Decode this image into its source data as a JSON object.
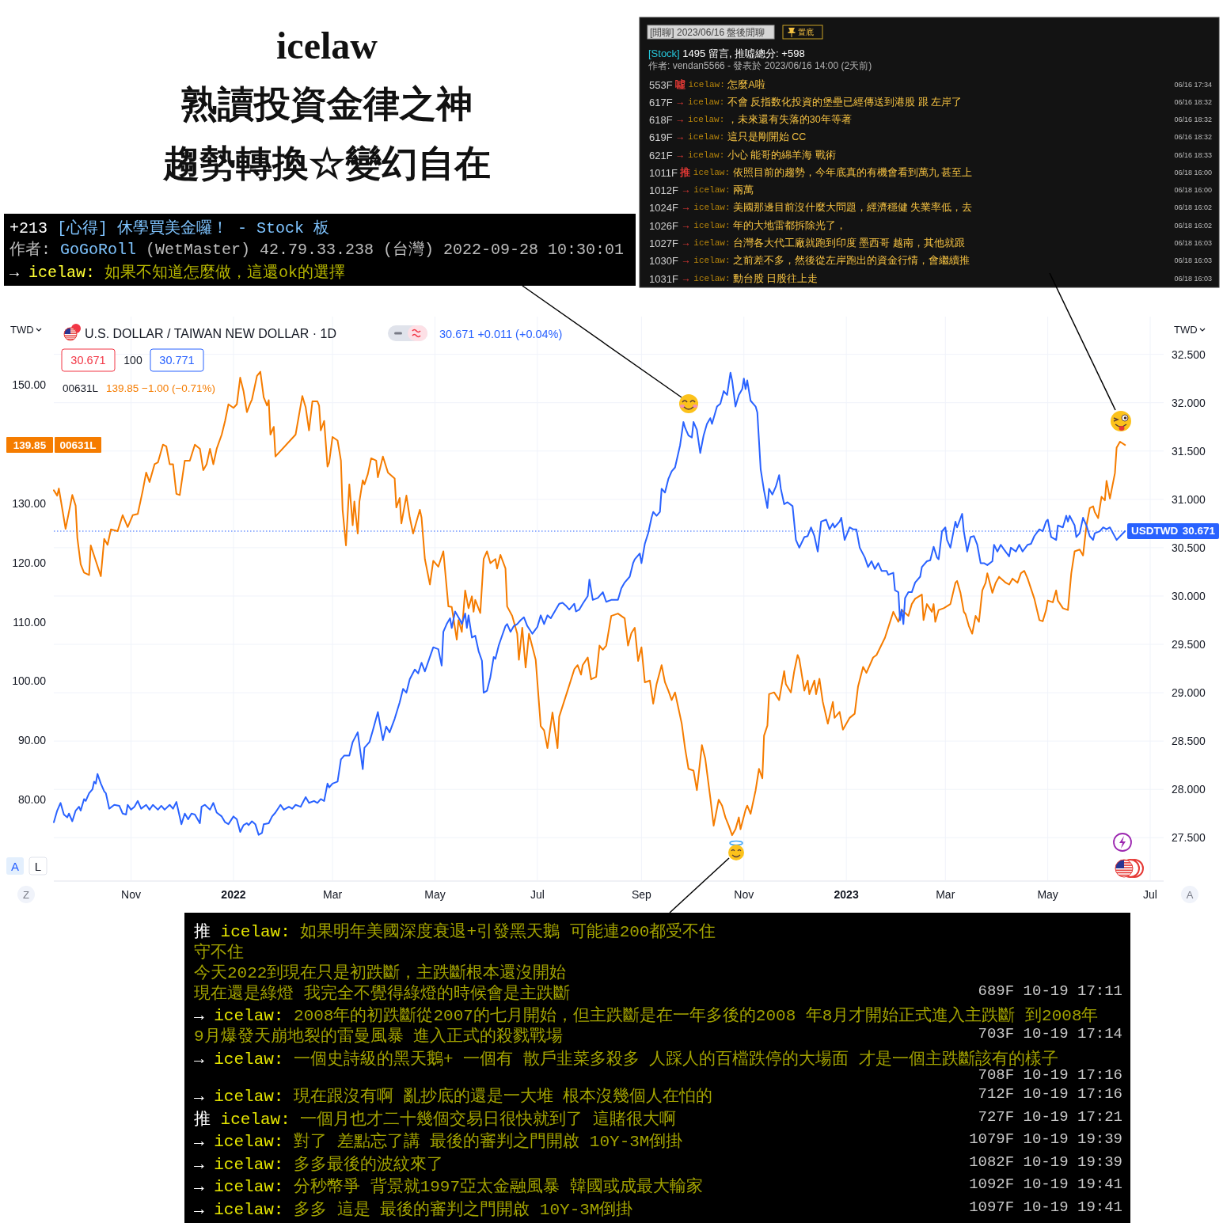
{
  "chart_data": {
    "type": "line",
    "title": "icelaw",
    "subtitle": "熟讀投資金律之神",
    "ylabel": "TWD",
    "y2label": "TWD",
    "annotations": [
      "+213 [心得] 休學買美金囉！ - Stock 板",
      "作者: GoGoRoll (WetMaster) 42.79.33.238 (台灣) 2022-09-28 10:30:01",
      "→ icelaw: 如果不知道怎麼做，這還ok的選擇",
      "[閒聊] 2023/06/16 盤後閒聊",
      "置底",
      "[Stock] 1495 留言, 推噓總分: +598",
      "作者: vendan5566 - 發表於 2023/06/16 14:00 (2天前)",
      "553F 噓 icelaw: 怎麼A啦",
      "06/16 17:34",
      "617F → icelaw: 不會 反指数化投資的堡壘已經傳送到港股 跟 左岸了",
      "06/16 18:32",
      "618F → icelaw: ，未來還有失落的30年等著",
      "06/16 18:32",
      "619F → icelaw: 這只是剛開始 CC",
      "06/16 18:32",
      "621F → icelaw: 小心 能哥的綿羊海 戰術",
      "06/16 18:33",
      "1011F 推 icelaw: 依照目前的趨勢，今年底真的有機會看到萬九 甚至上",
      "06/18 16:00",
      "1012F → icelaw: 兩萬",
      "06/18 16:00",
      "1024F → icelaw: 美國那邊目前沒什麼大問題，經濟穩健 失業率低，去",
      "06/18 16:02",
      "1026F → icelaw: 年的大地雷都拆除光了，",
      "06/18 16:02",
      "1027F → icelaw: 台灣各大代工廠就跑到印度 墨西哥 越南，其他就跟",
      "06/18 16:03",
      "1030F → icelaw: 之前差不多，然後從左岸跑出的資金行情，會繼續推",
      "06/18 16:03",
      "1031F → icelaw: 動台股 日股往上走",
      "06/18 16:03",
      "推 icelaw: 如果明年美國深度衰退+引發黑天鵝 可能連200都受不住",
      "守不住",
      "今天2022到現在只是初跌斷，主跌斷根本還沒開始",
      "現在還是綠燈 我完全不覺得綠燈的時候會是主跌斷",
      "689F 10-19 17:11",
      "→ icelaw: 2008年的初跌斷從2007的七月開始，但主跌斷是在一年多後的2008 年8月才開始正式進入主跌斷 到2008年",
      "9月爆發天崩地裂的雷曼風暴 進入正式的殺戮戰場",
      "703F 10-19 17:14",
      "→ icelaw: 一個史詩級的黑天鵝+ 一個有 散戶韭菜多殺多 人踩人的百檔跌停的大場面 才是一個主跌斷該有的樣子",
      "708F 10-19 17:16",
      "→ icelaw: 現在跟沒有啊 亂抄底的還是一大堆 根本沒幾個人在怕的",
      "712F 10-19 17:16",
      "推 icelaw: 一個月也才二十幾個交易日很快就到了 這賭很大啊",
      "727F 10-19 17:21",
      "→ icelaw: 對了 差點忘了講 最後的審判之門開啟 10Y-3M倒掛",
      "1079F 10-19 19:39",
      "→ icelaw: 多多最後的波紋來了",
      "1082F 10-19 19:39",
      "→ icelaw: 分秒幣爭 背景就1997亞太金融風暴 韓國或成最大輸家",
      "1092F 10-19 19:41",
      "→ icelaw: 多多 這是 最後的審判之門開啟 10Y-3M倒掛",
      "1097F 10-19 19:41",
      "U.S. DOLLAR / TAIWAN NEW DOLLAR · 1D",
      "30.671 +0.011 (+0.04%)",
      "30.671",
      "100",
      "30.771",
      "139.85 −1.00 (−0.71%)",
      "A",
      "L",
      "Z",
      "A",
      "趨勢轉換☆變幻自在",
      "139.85",
      "30.671"
    ],
    "xlim": [
      "2021-09-16",
      "2023-07-09"
    ],
    "xticks": [
      {
        "value": "2021-11-01",
        "label": "Nov"
      },
      {
        "value": "2022-01-01",
        "label": "2022"
      },
      {
        "value": "2022-03-01",
        "label": "Mar"
      },
      {
        "value": "2022-05-01",
        "label": "May"
      },
      {
        "value": "2022-07-01",
        "label": "Jul"
      },
      {
        "value": "2022-09-01",
        "label": "Sep"
      },
      {
        "value": "2022-11-01",
        "label": "Nov"
      },
      {
        "value": "2023-01-01",
        "label": "2023"
      },
      {
        "value": "2023-03-01",
        "label": "Mar"
      },
      {
        "value": "2023-05-01",
        "label": "May"
      },
      {
        "value": "2023-07-01",
        "label": "Jul"
      }
    ],
    "ylim": [
      66.4,
      161.5
    ],
    "yticks": [
      {
        "value": 80,
        "label": "80.00"
      },
      {
        "value": 90,
        "label": "90.00"
      },
      {
        "value": 100,
        "label": "100.00"
      },
      {
        "value": 110,
        "label": "110.00"
      },
      {
        "value": 120,
        "label": "120.00"
      },
      {
        "value": 130,
        "label": "130.00"
      },
      {
        "value": 150,
        "label": "150.00"
      }
    ],
    "y2lim": [
      27.06,
      32.89
    ],
    "y2ticks": [
      {
        "value": 27.5,
        "label": "27.500"
      },
      {
        "value": 28,
        "label": "28.000"
      },
      {
        "value": 28.5,
        "label": "28.500"
      },
      {
        "value": 29,
        "label": "29.000"
      },
      {
        "value": 29.5,
        "label": "29.500"
      },
      {
        "value": 30,
        "label": "30.000"
      },
      {
        "value": 30.5,
        "label": "30.500"
      },
      {
        "value": 31,
        "label": "31.000"
      },
      {
        "value": 31.5,
        "label": "31.500"
      },
      {
        "value": 32,
        "label": "32.000"
      },
      {
        "value": 32.5,
        "label": "32.500"
      }
    ],
    "grid": true,
    "legend": "top left",
    "ref_lines": [
      {
        "axis": "y2",
        "value": 30.671,
        "color": "#2962ff",
        "line_style": "dotted"
      }
    ],
    "series": [
      {
        "name": "00631L",
        "color": "#f57c00",
        "x": [
          "2021-09-16",
          "2021-09-18",
          "2021-09-19",
          "2021-09-23",
          "2021-09-27",
          "2021-09-29",
          "2021-09-30",
          "2021-10-02",
          "2021-10-04",
          "2021-10-07",
          "2021-10-08",
          "2021-10-11",
          "2021-10-14",
          "2021-10-16",
          "2021-10-18",
          "2021-10-20",
          "2021-10-24",
          "2021-10-27",
          "2021-10-30",
          "2021-11-02",
          "2021-11-05",
          "2021-11-08",
          "2021-11-10",
          "2021-11-12",
          "2021-11-15",
          "2021-11-17",
          "2021-11-20",
          "2021-11-22",
          "2021-11-24",
          "2021-11-26",
          "2021-11-28",
          "2021-11-30",
          "2021-12-03",
          "2021-12-06",
          "2021-12-09",
          "2021-12-12",
          "2021-12-14",
          "2021-12-16",
          "2021-12-18",
          "2021-12-20",
          "2021-12-22",
          "2021-12-25",
          "2021-12-27",
          "2021-12-29",
          "2022-01-01",
          "2022-01-03",
          "2022-01-05",
          "2022-01-07",
          "2022-01-09",
          "2022-01-11",
          "2022-01-12",
          "2022-01-15",
          "2022-01-17",
          "2022-01-19",
          "2022-01-21",
          "2022-01-22",
          "2022-01-23",
          "2022-01-25",
          "2022-01-26",
          "2022-02-07",
          "2022-02-11",
          "2022-02-13",
          "2022-02-15",
          "2022-02-17",
          "2022-02-20",
          "2022-02-21",
          "2022-02-22",
          "2022-02-24",
          "2022-02-26",
          "2022-02-27",
          "2022-03-01",
          "2022-03-04",
          "2022-03-06",
          "2022-03-07",
          "2022-03-09",
          "2022-03-11",
          "2022-03-13",
          "2022-03-14",
          "2022-03-16",
          "2022-03-17",
          "2022-03-19",
          "2022-03-20",
          "2022-03-22",
          "2022-03-24",
          "2022-03-27",
          "2022-03-28",
          "2022-03-31",
          "2022-04-03",
          "2022-04-07",
          "2022-04-08",
          "2022-04-10",
          "2022-04-11",
          "2022-04-14",
          "2022-04-16",
          "2022-04-18",
          "2022-04-20",
          "2022-04-22",
          "2022-04-23",
          "2022-04-25",
          "2022-04-28",
          "2022-04-30",
          "2022-05-03",
          "2022-05-06",
          "2022-05-09",
          "2022-05-11",
          "2022-05-14",
          "2022-05-15",
          "2022-05-17",
          "2022-05-19",
          "2022-05-21",
          "2022-05-23",
          "2022-05-24",
          "2022-05-25",
          "2022-05-28",
          "2022-05-30",
          "2022-06-01",
          "2022-06-03",
          "2022-06-06",
          "2022-06-07",
          "2022-06-09",
          "2022-06-12",
          "2022-06-13",
          "2022-06-16",
          "2022-06-19",
          "2022-06-20",
          "2022-06-22",
          "2022-06-24",
          "2022-06-26",
          "2022-06-30",
          "2022-07-03",
          "2022-07-05",
          "2022-07-07",
          "2022-07-10",
          "2022-07-13",
          "2022-07-14",
          "2022-07-19",
          "2022-07-23",
          "2022-07-25",
          "2022-07-27",
          "2022-07-28",
          "2022-07-31",
          "2022-08-02",
          "2022-08-05",
          "2022-08-07",
          "2022-08-09",
          "2022-08-11",
          "2022-08-14",
          "2022-08-18",
          "2022-08-22",
          "2022-08-24",
          "2022-08-26",
          "2022-08-28",
          "2022-08-30",
          "2022-09-01",
          "2022-09-03",
          "2022-09-06",
          "2022-09-08",
          "2022-09-10",
          "2022-09-13",
          "2022-09-15",
          "2022-09-17",
          "2022-09-19",
          "2022-09-21",
          "2022-09-25",
          "2022-09-27",
          "2022-09-29",
          "2022-10-02",
          "2022-10-04",
          "2022-10-07",
          "2022-10-09",
          "2022-10-12",
          "2022-10-14",
          "2022-10-17",
          "2022-10-19",
          "2022-10-21",
          "2022-10-23",
          "2022-10-25",
          "2022-10-27",
          "2022-10-29",
          "2022-10-30",
          "2022-11-02",
          "2022-11-03",
          "2022-11-05",
          "2022-11-08",
          "2022-11-10",
          "2022-11-12",
          "2022-11-13",
          "2022-11-15",
          "2022-11-16",
          "2022-11-19",
          "2022-11-22",
          "2022-11-25",
          "2022-11-26",
          "2022-11-29",
          "2022-12-01",
          "2022-12-03",
          "2022-12-04",
          "2022-12-07",
          "2022-12-09",
          "2022-12-10",
          "2022-12-13",
          "2022-12-14",
          "2022-12-16",
          "2022-12-18",
          "2022-12-21",
          "2022-12-24",
          "2022-12-25",
          "2022-12-28",
          "2022-12-30",
          "2023-01-03",
          "2023-01-06",
          "2023-01-08",
          "2023-01-11",
          "2023-01-13",
          "2023-01-17",
          "2023-01-19",
          "2023-01-24",
          "2023-01-29",
          "2023-02-01",
          "2023-02-03",
          "2023-02-07",
          "2023-02-09",
          "2023-02-11",
          "2023-02-15",
          "2023-02-16",
          "2023-02-18",
          "2023-02-21",
          "2023-02-22",
          "2023-02-23",
          "2023-02-25",
          "2023-02-28",
          "2023-03-04",
          "2023-03-07",
          "2023-03-08",
          "2023-03-10",
          "2023-03-12",
          "2023-03-13",
          "2023-03-15",
          "2023-03-17",
          "2023-03-19",
          "2023-03-21",
          "2023-03-23",
          "2023-03-25",
          "2023-03-26",
          "2023-03-29",
          "2023-03-31",
          "2023-04-02",
          "2023-04-06",
          "2023-04-08",
          "2023-04-10",
          "2023-04-13",
          "2023-04-15",
          "2023-04-17",
          "2023-04-19",
          "2023-04-21",
          "2023-04-23",
          "2023-04-26",
          "2023-04-28",
          "2023-04-30",
          "2023-05-01",
          "2023-05-04",
          "2023-05-06",
          "2023-05-07",
          "2023-05-10",
          "2023-05-13",
          "2023-05-15",
          "2023-05-17",
          "2023-05-20",
          "2023-05-22",
          "2023-05-24",
          "2023-05-26",
          "2023-05-28",
          "2023-05-29",
          "2023-05-31",
          "2023-06-02",
          "2023-06-04",
          "2023-06-05",
          "2023-06-07",
          "2023-06-10",
          "2023-06-11",
          "2023-06-13",
          "2023-06-16"
        ],
        "values": [
          132.2,
          131.3,
          132.5,
          125.7,
          131.4,
          129.6,
          124.2,
          119.7,
          118.3,
          117.9,
          122.9,
          120.3,
          117.7,
          124.0,
          123.0,
          125.6,
          125.3,
          128.0,
          126.0,
          128.0,
          128.2,
          132.2,
          135.2,
          133.6,
          136.6,
          136.9,
          139.9,
          139.6,
          136.6,
          136.6,
          131.6,
          131.4,
          137.2,
          137.2,
          139.9,
          139.2,
          135.6,
          136.6,
          139.2,
          136.6,
          139.2,
          141.6,
          143.9,
          146.7,
          146.1,
          146.7,
          151.2,
          148.9,
          145.4,
          146.9,
          147.5,
          151.5,
          152.2,
          147.9,
          146.5,
          147.4,
          141.6,
          142.9,
          137.9,
          141.6,
          148.1,
          146.2,
          142.3,
          147.2,
          147.2,
          146.5,
          142.3,
          143.9,
          136.2,
          136.9,
          141.2,
          140.6,
          137.2,
          128.9,
          122.9,
          133.2,
          126.3,
          130.3,
          124.9,
          130.3,
          133.9,
          133.2,
          134.9,
          137.6,
          137.2,
          134.4,
          137.9,
          135.2,
          134.2,
          129.3,
          130.9,
          126.6,
          131.3,
          127.6,
          124.9,
          126.9,
          128.9,
          127.6,
          120.6,
          116.3,
          120.3,
          119.3,
          121.9,
          112.6,
          112.5,
          107.0,
          110.3,
          108.3,
          115.3,
          112.3,
          114.3,
          111.7,
          113.7,
          111.5,
          120.6,
          121.9,
          119.9,
          120.6,
          119.0,
          121.3,
          119.0,
          112.6,
          111.0,
          108.0,
          103.6,
          109.0,
          102.3,
          108.0,
          103.6,
          92.4,
          91.7,
          88.7,
          94.7,
          88.7,
          94.0,
          98.4,
          102.0,
          102.7,
          101.1,
          102.7,
          104.0,
          100.3,
          100.7,
          106.0,
          105.3,
          106.0,
          111.0,
          111.4,
          110.6,
          106.0,
          108.1,
          109.0,
          103.4,
          105.7,
          99.8,
          100.1,
          96.2,
          99.5,
          102.7,
          99.8,
          98.4,
          96.8,
          98.1,
          92.8,
          88.6,
          85.2,
          84.9,
          81.6,
          89.2,
          86.9,
          80.3,
          75.6,
          80.0,
          79.0,
          77.0,
          75.6,
          74.0,
          75.0,
          77.0,
          75.0,
          78.3,
          79.0,
          77.6,
          81.6,
          85.2,
          83.6,
          90.8,
          92.5,
          97.8,
          98.1,
          96.8,
          101.7,
          99.5,
          98.1,
          101.7,
          104.4,
          103.7,
          98.4,
          100.1,
          97.8,
          100.1,
          97.8,
          100.4,
          96.5,
          92.8,
          96.5,
          93.8,
          94.8,
          91.8,
          93.8,
          94.5,
          99.1,
          102.4,
          101.4,
          104.0,
          104.4,
          107.3,
          111.7,
          110.0,
          112.0,
          111.0,
          113.0,
          113.9,
          114.6,
          110.3,
          113.0,
          111.7,
          113.0,
          110.0,
          112.0,
          112.3,
          113.0,
          116.6,
          116.9,
          114.9,
          111.7,
          111.3,
          109.3,
          108.0,
          111.0,
          110.0,
          115.3,
          116.6,
          118.2,
          114.9,
          116.6,
          117.6,
          116.6,
          116.3,
          117.3,
          116.6,
          118.2,
          118.6,
          117.3,
          115.6,
          113.9,
          110.3,
          110.1,
          112.0,
          113.6,
          113.3,
          115.3,
          113.6,
          112.3,
          112.0,
          118.2,
          121.9,
          122.2,
          121.2,
          126.2,
          129.2,
          129.5,
          128.5,
          127.5,
          131.1,
          130.5,
          133.8,
          130.8,
          135.1,
          139.4,
          140.4,
          139.85
        ]
      },
      {
        "name": "USDTWD",
        "color": "#2962ff",
        "axis": "y2",
        "x": [
          "2021-09-16",
          "2021-09-18",
          "2021-09-20",
          "2021-09-22",
          "2021-09-24",
          "2021-09-25",
          "2021-09-27",
          "2021-09-29",
          "2021-10-01",
          "2021-10-02",
          "2021-10-04",
          "2021-10-05",
          "2021-10-07",
          "2021-10-09",
          "2021-10-10",
          "2021-10-11",
          "2021-10-12",
          "2021-10-14",
          "2021-10-16",
          "2021-10-17",
          "2021-10-19",
          "2021-10-22",
          "2021-10-25",
          "2021-10-27",
          "2021-10-29",
          "2021-10-30",
          "2021-11-01",
          "2021-11-03",
          "2021-11-05",
          "2021-11-07",
          "2021-11-10",
          "2021-11-12",
          "2021-11-14",
          "2021-11-17",
          "2021-11-19",
          "2021-11-21",
          "2021-11-24",
          "2021-11-26",
          "2021-11-28",
          "2021-12-01",
          "2021-12-03",
          "2021-12-05",
          "2021-12-07",
          "2021-12-09",
          "2021-12-12",
          "2021-12-13",
          "2021-12-15",
          "2021-12-18",
          "2021-12-20",
          "2021-12-22",
          "2021-12-25",
          "2021-12-27",
          "2021-12-29",
          "2022-01-01",
          "2022-01-03",
          "2022-01-05",
          "2022-01-07",
          "2022-01-09",
          "2022-01-10",
          "2022-01-12",
          "2022-01-14",
          "2022-01-16",
          "2022-01-18",
          "2022-01-19",
          "2022-01-22",
          "2022-01-24",
          "2022-01-26",
          "2022-01-29",
          "2022-01-31",
          "2022-02-03",
          "2022-02-05",
          "2022-02-07",
          "2022-02-10",
          "2022-02-13",
          "2022-02-15",
          "2022-02-18",
          "2022-02-20",
          "2022-02-22",
          "2022-02-24",
          "2022-02-26",
          "2022-02-27",
          "2022-03-01",
          "2022-03-04",
          "2022-03-06",
          "2022-03-08",
          "2022-03-11",
          "2022-03-13",
          "2022-03-16",
          "2022-03-19",
          "2022-03-20",
          "2022-03-23",
          "2022-03-25",
          "2022-03-28",
          "2022-03-31",
          "2022-04-02",
          "2022-04-04",
          "2022-04-07",
          "2022-04-10",
          "2022-04-12",
          "2022-04-14",
          "2022-04-16",
          "2022-04-19",
          "2022-04-21",
          "2022-04-23",
          "2022-04-25",
          "2022-04-28",
          "2022-04-30",
          "2022-05-03",
          "2022-05-05",
          "2022-05-06",
          "2022-05-08",
          "2022-05-10",
          "2022-05-11",
          "2022-05-13",
          "2022-05-16",
          "2022-05-17",
          "2022-05-19",
          "2022-05-20",
          "2022-05-21",
          "2022-05-23",
          "2022-05-25",
          "2022-05-27",
          "2022-05-29",
          "2022-05-30",
          "2022-06-01",
          "2022-06-03",
          "2022-06-05",
          "2022-06-06",
          "2022-06-08",
          "2022-06-10",
          "2022-06-12",
          "2022-06-13",
          "2022-06-15",
          "2022-06-17",
          "2022-06-19",
          "2022-06-21",
          "2022-06-23",
          "2022-06-25",
          "2022-06-28",
          "2022-07-01",
          "2022-07-03",
          "2022-07-05",
          "2022-07-07",
          "2022-07-09",
          "2022-07-12",
          "2022-07-14",
          "2022-07-16",
          "2022-07-18",
          "2022-07-20",
          "2022-07-23",
          "2022-07-24",
          "2022-07-26",
          "2022-07-28",
          "2022-07-31",
          "2022-08-01",
          "2022-08-03",
          "2022-08-06",
          "2022-08-09",
          "2022-08-11",
          "2022-08-14",
          "2022-08-16",
          "2022-08-18",
          "2022-08-20",
          "2022-08-22",
          "2022-08-25",
          "2022-08-27",
          "2022-08-28",
          "2022-08-31",
          "2022-09-01",
          "2022-09-03",
          "2022-09-05",
          "2022-09-07",
          "2022-09-08",
          "2022-09-10",
          "2022-09-12",
          "2022-09-13",
          "2022-09-15",
          "2022-09-17",
          "2022-09-19",
          "2022-09-21",
          "2022-09-24",
          "2022-09-26",
          "2022-09-27",
          "2022-09-29",
          "2022-10-01",
          "2022-10-02",
          "2022-10-04",
          "2022-10-06",
          "2022-10-08",
          "2022-10-10",
          "2022-10-12",
          "2022-10-13",
          "2022-10-16",
          "2022-10-18",
          "2022-10-20",
          "2022-10-22",
          "2022-10-24",
          "2022-10-25",
          "2022-10-27",
          "2022-10-29",
          "2022-10-31",
          "2022-11-01",
          "2022-11-02",
          "2022-11-03",
          "2022-11-05",
          "2022-11-08",
          "2022-11-09",
          "2022-11-11",
          "2022-11-13",
          "2022-11-15",
          "2022-11-16",
          "2022-11-18",
          "2022-11-20",
          "2022-11-22",
          "2022-11-23",
          "2022-11-25",
          "2022-11-27",
          "2022-11-30",
          "2022-12-02",
          "2022-12-04",
          "2022-12-07",
          "2022-12-09",
          "2022-12-11",
          "2022-12-13",
          "2022-12-15",
          "2022-12-17",
          "2022-12-20",
          "2022-12-22",
          "2022-12-24",
          "2022-12-25",
          "2022-12-28",
          "2022-12-29",
          "2022-12-31",
          "2023-01-03",
          "2023-01-05",
          "2023-01-07",
          "2023-01-09",
          "2023-01-12",
          "2023-01-14",
          "2023-01-16",
          "2023-01-18",
          "2023-01-20",
          "2023-01-22",
          "2023-01-25",
          "2023-01-26",
          "2023-01-29",
          "2023-01-30",
          "2023-02-01",
          "2023-02-02",
          "2023-02-03",
          "2023-02-04",
          "2023-02-05",
          "2023-02-07",
          "2023-02-09",
          "2023-02-11",
          "2023-02-14",
          "2023-02-15",
          "2023-02-18",
          "2023-02-20",
          "2023-02-22",
          "2023-02-24",
          "2023-02-25",
          "2023-02-27",
          "2023-03-01",
          "2023-03-02",
          "2023-03-04",
          "2023-03-07",
          "2023-03-08",
          "2023-03-11",
          "2023-03-12",
          "2023-03-14",
          "2023-03-16",
          "2023-03-18",
          "2023-03-20",
          "2023-03-22",
          "2023-03-24",
          "2023-03-26",
          "2023-03-29",
          "2023-03-30",
          "2023-04-01",
          "2023-04-03",
          "2023-04-05",
          "2023-04-08",
          "2023-04-09",
          "2023-04-12",
          "2023-04-14",
          "2023-04-16",
          "2023-04-19",
          "2023-04-21",
          "2023-04-23",
          "2023-04-26",
          "2023-04-28",
          "2023-04-30",
          "2023-05-01",
          "2023-05-03",
          "2023-05-06",
          "2023-05-07",
          "2023-05-10",
          "2023-05-12",
          "2023-05-13",
          "2023-05-14",
          "2023-05-17",
          "2023-05-18",
          "2023-05-20",
          "2023-05-22",
          "2023-05-24",
          "2023-05-26",
          "2023-05-28",
          "2023-05-29",
          "2023-06-01",
          "2023-06-03",
          "2023-06-05",
          "2023-06-07",
          "2023-06-11",
          "2023-06-16"
        ],
        "values": [
          27.66,
          27.78,
          27.86,
          27.74,
          27.71,
          27.75,
          27.67,
          27.78,
          27.82,
          27.78,
          27.9,
          27.88,
          27.96,
          28.0,
          28.08,
          28.06,
          28.16,
          28.06,
          27.98,
          27.96,
          27.8,
          27.84,
          27.83,
          27.75,
          27.74,
          27.84,
          27.79,
          27.82,
          27.88,
          27.8,
          27.84,
          27.79,
          27.84,
          27.79,
          27.83,
          27.79,
          27.84,
          27.8,
          27.87,
          27.64,
          27.75,
          27.69,
          27.75,
          27.74,
          27.65,
          27.82,
          27.84,
          27.79,
          27.86,
          27.76,
          27.72,
          27.66,
          27.64,
          27.72,
          27.69,
          27.56,
          27.63,
          27.65,
          27.63,
          27.67,
          27.64,
          27.53,
          27.55,
          27.64,
          27.65,
          27.72,
          27.76,
          27.84,
          27.79,
          27.82,
          27.8,
          27.84,
          27.82,
          27.92,
          27.86,
          27.88,
          27.86,
          27.9,
          27.88,
          28.06,
          28.02,
          28.06,
          28.08,
          28.31,
          28.35,
          28.35,
          28.49,
          28.59,
          28.21,
          28.43,
          28.49,
          28.61,
          28.8,
          28.51,
          28.65,
          28.59,
          28.73,
          28.9,
          29.04,
          29.0,
          29.14,
          29.24,
          29.2,
          29.31,
          29.22,
          29.37,
          29.47,
          29.45,
          29.28,
          29.63,
          29.71,
          29.77,
          29.67,
          29.84,
          29.75,
          29.71,
          29.82,
          29.67,
          29.8,
          29.57,
          29.59,
          29.43,
          29.33,
          29.0,
          29.02,
          29.16,
          29.37,
          29.35,
          29.49,
          29.59,
          29.69,
          29.71,
          29.63,
          29.69,
          29.71,
          29.75,
          29.78,
          29.69,
          29.61,
          29.68,
          29.8,
          29.71,
          29.8,
          29.77,
          29.86,
          29.92,
          29.93,
          29.9,
          29.86,
          29.92,
          29.84,
          29.86,
          29.92,
          30.0,
          30.17,
          29.96,
          29.98,
          30.04,
          29.94,
          29.96,
          29.96,
          29.96,
          30.08,
          30.14,
          30.2,
          30.34,
          30.38,
          30.44,
          30.34,
          30.54,
          30.65,
          30.81,
          30.87,
          30.83,
          30.87,
          31.11,
          31.07,
          31.21,
          31.29,
          31.33,
          31.56,
          31.8,
          31.74,
          31.66,
          31.64,
          31.8,
          31.72,
          31.48,
          31.66,
          31.78,
          31.84,
          31.78,
          31.96,
          31.99,
          32.12,
          32.08,
          32.31,
          32.23,
          31.96,
          32.08,
          32.14,
          32.25,
          32.14,
          32.23,
          32.02,
          31.96,
          31.9,
          31.31,
          31.09,
          30.91,
          31.11,
          31.05,
          31.13,
          31.25,
          31.11,
          30.95,
          30.97,
          30.93,
          30.58,
          30.5,
          30.61,
          30.62,
          30.71,
          30.62,
          30.46,
          30.77,
          30.79,
          30.69,
          30.75,
          30.71,
          30.77,
          30.81,
          30.58,
          30.71,
          30.69,
          30.69,
          30.5,
          30.4,
          30.3,
          30.36,
          30.28,
          30.34,
          30.26,
          30.26,
          30.22,
          30.24,
          30.06,
          30.04,
          29.75,
          29.86,
          29.71,
          29.98,
          30.04,
          30.04,
          30.14,
          30.2,
          30.3,
          30.36,
          30.37,
          30.51,
          30.4,
          30.38,
          30.67,
          30.71,
          30.58,
          30.5,
          30.77,
          30.71,
          30.85,
          30.67,
          30.46,
          30.61,
          30.62,
          30.53,
          30.34,
          30.34,
          30.32,
          30.36,
          30.53,
          30.46,
          30.53,
          30.48,
          30.41,
          30.5,
          30.46,
          30.53,
          30.46,
          30.53,
          30.54,
          30.62,
          30.69,
          30.67,
          30.77,
          30.79,
          30.61,
          30.58,
          30.73,
          30.71,
          30.83,
          30.77,
          30.83,
          30.73,
          30.61,
          30.65,
          30.81,
          30.73,
          30.62,
          30.58,
          30.65,
          30.67,
          30.71,
          30.69,
          30.71,
          30.58,
          30.671
        ]
      }
    ]
  }
}
